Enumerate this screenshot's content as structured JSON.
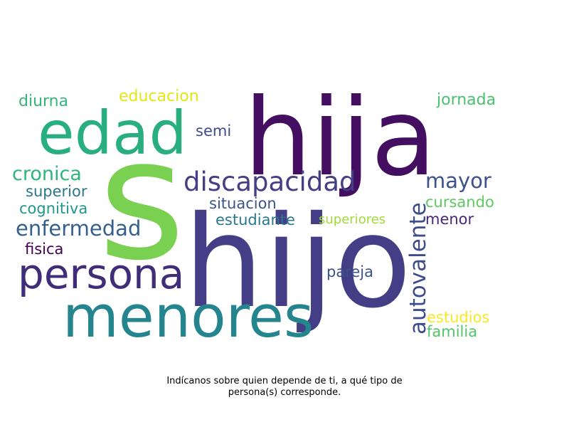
{
  "words": [
    {
      "text": "s",
      "color": "#7ad151"
    },
    {
      "text": "hija",
      "color": "#440f60"
    },
    {
      "text": "hijo",
      "color": "#433e85"
    },
    {
      "text": "edad",
      "color": "#29af7f"
    },
    {
      "text": "menores",
      "color": "#25858e"
    },
    {
      "text": "persona",
      "color": "#3f2d7a"
    },
    {
      "text": "discapacidad",
      "color": "#433e85"
    },
    {
      "text": "autovalente",
      "color": "#3d4d8a"
    },
    {
      "text": "enfermedad",
      "color": "#355f8d"
    },
    {
      "text": "cronica",
      "color": "#2fb47c"
    },
    {
      "text": "mayor",
      "color": "#3b528b"
    },
    {
      "text": "diurna",
      "color": "#35b779"
    },
    {
      "text": "educacion",
      "color": "#e5e419"
    },
    {
      "text": "jornada",
      "color": "#4ac16d"
    },
    {
      "text": "semi",
      "color": "#3e4a89"
    },
    {
      "text": "superior",
      "color": "#2a788e"
    },
    {
      "text": "cognitiva",
      "color": "#1f978b"
    },
    {
      "text": "situacion",
      "color": "#3b528b"
    },
    {
      "text": "cursando",
      "color": "#5ec962"
    },
    {
      "text": "estudiante",
      "color": "#2a788e"
    },
    {
      "text": "superiores",
      "color": "#a0da39"
    },
    {
      "text": "menor",
      "color": "#482878"
    },
    {
      "text": "fisica",
      "color": "#440154"
    },
    {
      "text": "pareja",
      "color": "#3b528b"
    },
    {
      "text": "estudios",
      "color": "#fde725"
    },
    {
      "text": "familia",
      "color": "#52c569"
    }
  ],
  "caption": {
    "line1": "Indícanos sobre quien depende de ti, a qué tipo de",
    "line2": "persona(s) corresponde."
  }
}
